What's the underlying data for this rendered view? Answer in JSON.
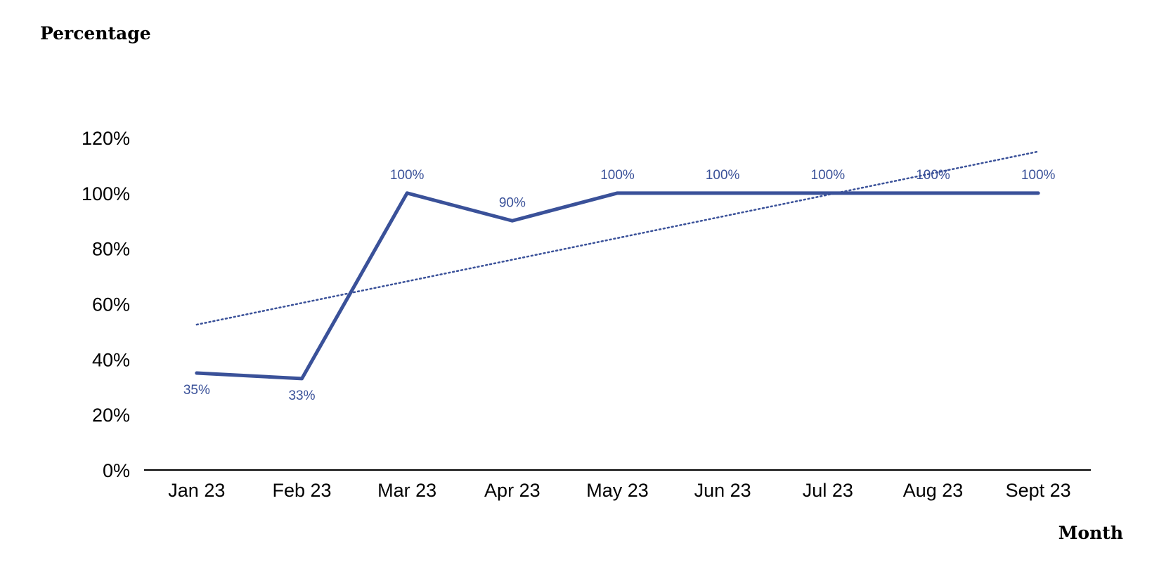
{
  "chart_data": {
    "type": "line",
    "title": "",
    "xlabel": "Month",
    "ylabel": "Percentage",
    "categories": [
      "Jan 23",
      "Feb 23",
      "Mar 23",
      "Apr 23",
      "May 23",
      "Jun 23",
      "Jul 23",
      "Aug 23",
      "Sept 23"
    ],
    "series": [
      {
        "values": [
          35,
          33,
          100,
          90,
          100,
          100,
          100,
          100,
          100
        ],
        "data_labels": [
          "35%",
          "33%",
          "100%",
          "90%",
          "100%",
          "100%",
          "100%",
          "100%",
          "100%"
        ],
        "color": "#3a5199",
        "trendline": {
          "type": "linear",
          "style": "dotted",
          "start": 52.5,
          "end": 115
        }
      }
    ],
    "ylim": [
      0,
      120
    ],
    "y_ticks": [
      0,
      20,
      40,
      60,
      80,
      100,
      120
    ],
    "y_tick_labels": [
      "0%",
      "20%",
      "40%",
      "60%",
      "80%",
      "100%",
      "120%"
    ],
    "grid": false,
    "legend": "none"
  }
}
